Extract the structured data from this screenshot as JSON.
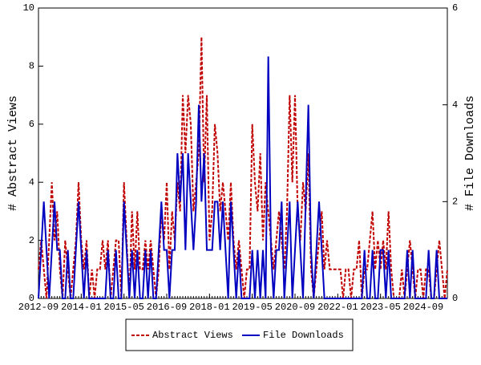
{
  "chart_data": {
    "type": "line",
    "x": [
      "2012-09",
      "2012-10",
      "2012-11",
      "2012-12",
      "2013-01",
      "2013-02",
      "2013-03",
      "2013-04",
      "2013-05",
      "2013-06",
      "2013-07",
      "2013-08",
      "2013-09",
      "2013-10",
      "2013-11",
      "2013-12",
      "2014-01",
      "2014-02",
      "2014-03",
      "2014-04",
      "2014-05",
      "2014-06",
      "2014-07",
      "2014-08",
      "2014-09",
      "2014-10",
      "2014-11",
      "2014-12",
      "2015-01",
      "2015-02",
      "2015-03",
      "2015-04",
      "2015-05",
      "2015-06",
      "2015-07",
      "2015-08",
      "2015-09",
      "2015-10",
      "2015-11",
      "2015-12",
      "2016-01",
      "2016-02",
      "2016-03",
      "2016-04",
      "2016-05",
      "2016-06",
      "2016-07",
      "2016-08",
      "2016-09",
      "2016-10",
      "2016-11",
      "2016-12",
      "2017-01",
      "2017-02",
      "2017-03",
      "2017-04",
      "2017-05",
      "2017-06",
      "2017-07",
      "2017-08",
      "2017-09",
      "2017-10",
      "2017-11",
      "2017-12",
      "2018-01",
      "2018-02",
      "2018-03",
      "2018-04",
      "2018-05",
      "2018-06",
      "2018-07",
      "2018-08",
      "2018-09",
      "2018-10",
      "2018-11",
      "2018-12",
      "2019-01",
      "2019-02",
      "2019-03",
      "2019-04",
      "2019-05",
      "2019-06",
      "2019-07",
      "2019-08",
      "2019-09",
      "2019-10",
      "2019-11",
      "2019-12",
      "2020-01",
      "2020-02",
      "2020-03",
      "2020-04",
      "2020-05",
      "2020-06",
      "2020-07",
      "2020-08",
      "2020-09",
      "2020-10",
      "2020-11",
      "2020-12",
      "2021-01",
      "2021-02",
      "2021-03",
      "2021-04",
      "2021-05",
      "2021-06",
      "2021-07",
      "2021-08",
      "2021-09",
      "2021-10",
      "2021-11",
      "2021-12",
      "2022-01",
      "2022-02",
      "2022-03",
      "2022-04",
      "2022-05",
      "2022-06",
      "2022-07",
      "2022-08",
      "2022-09",
      "2022-10",
      "2022-11",
      "2022-12",
      "2023-01",
      "2023-02",
      "2023-03",
      "2023-04",
      "2023-05",
      "2023-06",
      "2023-07",
      "2023-08",
      "2023-09",
      "2023-10",
      "2023-11",
      "2023-12",
      "2024-01",
      "2024-02",
      "2024-03",
      "2024-04",
      "2024-05",
      "2024-06",
      "2024-07",
      "2024-08",
      "2024-09",
      "2024-10",
      "2024-11",
      "2024-12",
      "2025-01",
      "2025-02",
      "2025-03",
      "2025-04",
      "2025-05",
      "2025-06"
    ],
    "xticks": [
      "2012-09",
      "2014-01",
      "2015-05",
      "2016-09",
      "2018-01",
      "2019-05",
      "2020-09",
      "2022-01",
      "2023-05",
      "2024-09"
    ],
    "ylabel": "# Abstract Views",
    "ylim": [
      0,
      10
    ],
    "yticks": [
      0,
      2,
      4,
      6,
      8,
      10
    ],
    "y2label": "# File Downloads",
    "y2lim": [
      0,
      6
    ],
    "y2ticks": [
      0,
      2,
      4,
      6
    ],
    "legend": "bottom",
    "series": [
      {
        "name": "Abstract Views",
        "color": "#c00000",
        "dash": true,
        "values": [
          1,
          2,
          1,
          0,
          2,
          4,
          2,
          3,
          1,
          0,
          2,
          1,
          0,
          1,
          2,
          4,
          2,
          1,
          2,
          0,
          1,
          0,
          1,
          1,
          2,
          1,
          2,
          0,
          1,
          2,
          2,
          0,
          4,
          2,
          0,
          3,
          1,
          3,
          1,
          1,
          2,
          1,
          2,
          1,
          0,
          1,
          3,
          2,
          4,
          1,
          3,
          2,
          4,
          3,
          7,
          5,
          7,
          6,
          3,
          4,
          5,
          9,
          4,
          7,
          2,
          3,
          6,
          5,
          3,
          4,
          3,
          2,
          4,
          2,
          1,
          2,
          1,
          0,
          1,
          1,
          6,
          4,
          3,
          5,
          2,
          4,
          3,
          2,
          1,
          2,
          3,
          2,
          1,
          3,
          7,
          4,
          7,
          3,
          2,
          4,
          3,
          5,
          1,
          0,
          1,
          2,
          3,
          1,
          2,
          1,
          1,
          1,
          1,
          1,
          0,
          1,
          1,
          0,
          1,
          1,
          2,
          0,
          1,
          1,
          2,
          3,
          1,
          2,
          1,
          2,
          1,
          3,
          1,
          0,
          0,
          0,
          1,
          0,
          1,
          2,
          1,
          0,
          1,
          1,
          0,
          1,
          1,
          0,
          0,
          1,
          2,
          1,
          0,
          1
        ]
      },
      {
        "name": "File Downloads",
        "color": "#0000c0",
        "axis": "y2",
        "values": [
          0,
          1,
          2,
          1,
          0,
          1,
          2,
          1,
          1,
          0,
          0,
          1,
          0,
          0,
          1,
          2,
          1,
          0,
          1,
          0,
          0,
          0,
          0,
          0,
          0,
          0,
          1,
          0,
          0,
          1,
          0,
          0,
          2,
          1,
          0,
          1,
          0,
          1,
          0,
          0,
          1,
          0,
          1,
          0,
          0,
          1,
          2,
          1,
          1,
          0,
          1,
          1,
          3,
          2,
          3,
          1,
          3,
          2,
          1,
          2,
          4,
          2,
          3,
          1,
          1,
          1,
          2,
          2,
          1,
          2,
          1,
          0,
          2,
          1,
          0,
          1,
          0,
          0,
          0,
          0,
          1,
          0,
          1,
          0,
          1,
          0,
          5,
          1,
          0,
          1,
          1,
          2,
          0,
          1,
          2,
          0,
          1,
          2,
          1,
          0,
          2,
          4,
          1,
          0,
          1,
          2,
          1,
          0,
          0,
          0,
          0,
          0,
          0,
          0,
          0,
          0,
          0,
          0,
          0,
          0,
          0,
          0,
          1,
          0,
          0,
          1,
          0,
          0,
          1,
          1,
          0,
          1,
          0,
          0,
          0,
          0,
          0,
          0,
          1,
          0,
          1,
          0,
          0,
          0,
          0,
          0,
          1,
          0,
          0,
          1,
          0,
          0,
          0,
          0
        ]
      }
    ]
  }
}
